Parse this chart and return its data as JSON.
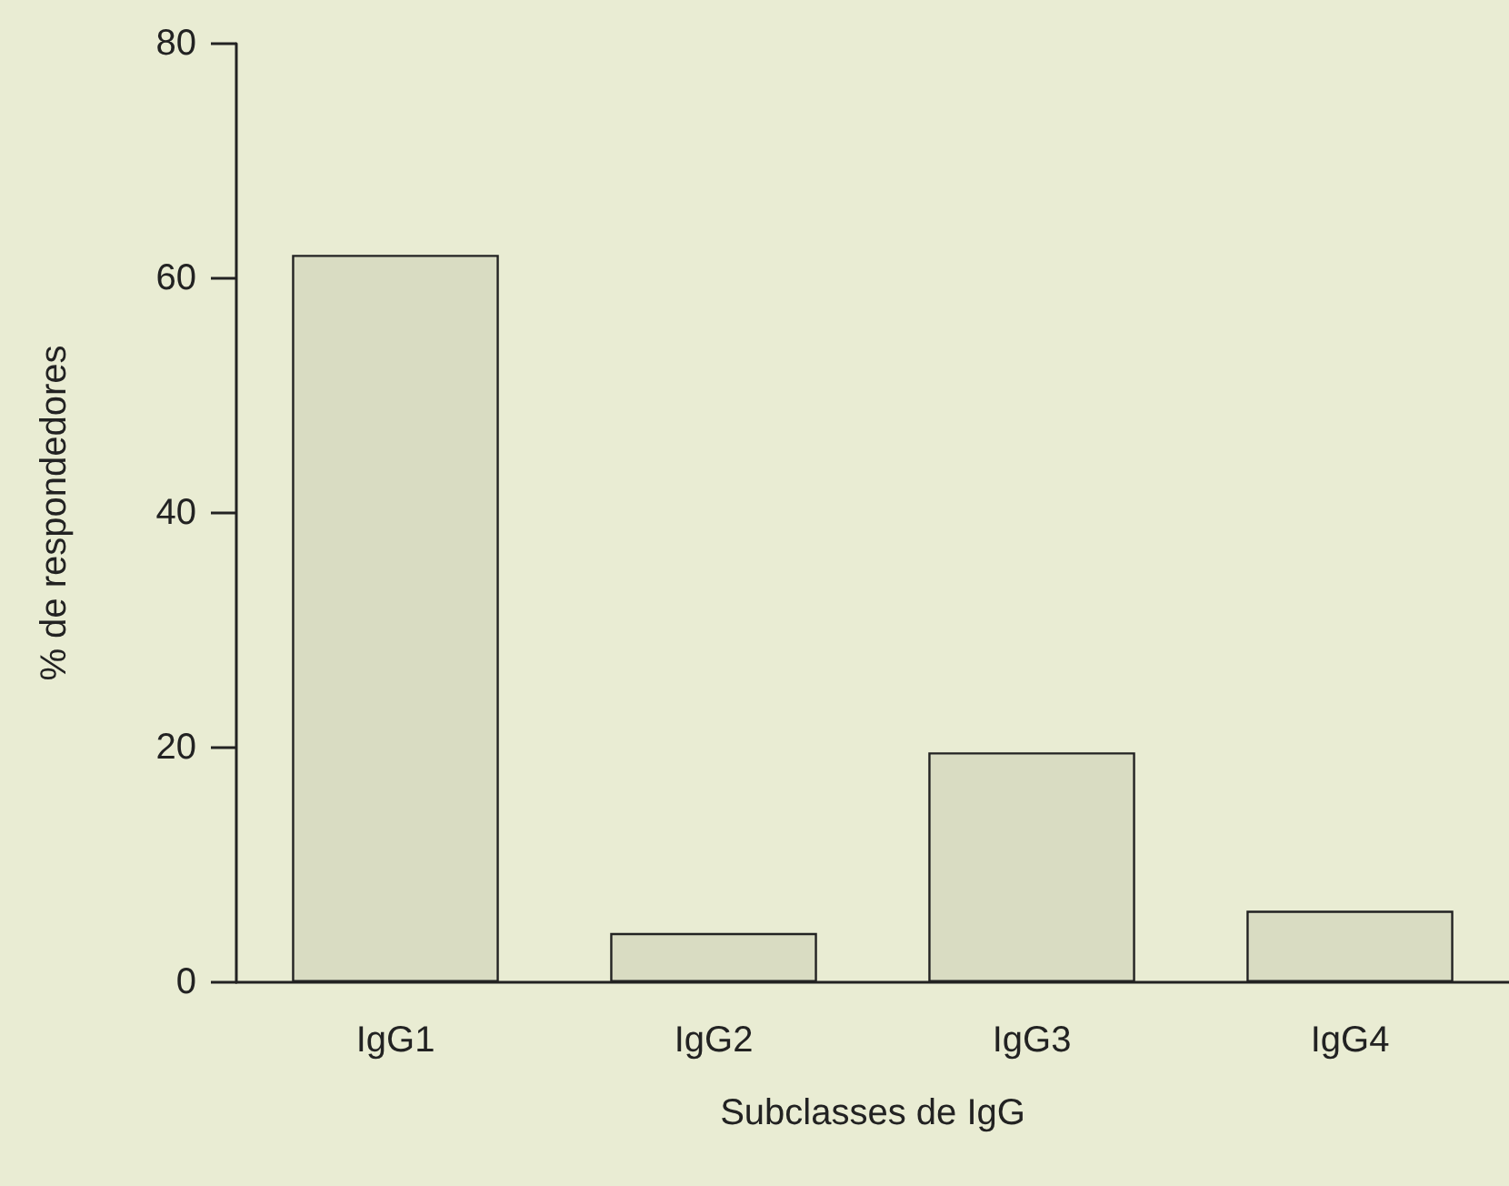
{
  "chart_data": {
    "type": "bar",
    "xlabel": "Subclasses de IgG",
    "ylabel": "% de respondedores",
    "categories": [
      "IgG1",
      "IgG2",
      "IgG3",
      "IgG4"
    ],
    "values": [
      62,
      4.2,
      19.6,
      6.1
    ],
    "color": "#d9dcc2",
    "ylim": [
      0,
      80
    ],
    "yticks": [
      0,
      20,
      40,
      60,
      80
    ],
    "grid": false
  }
}
